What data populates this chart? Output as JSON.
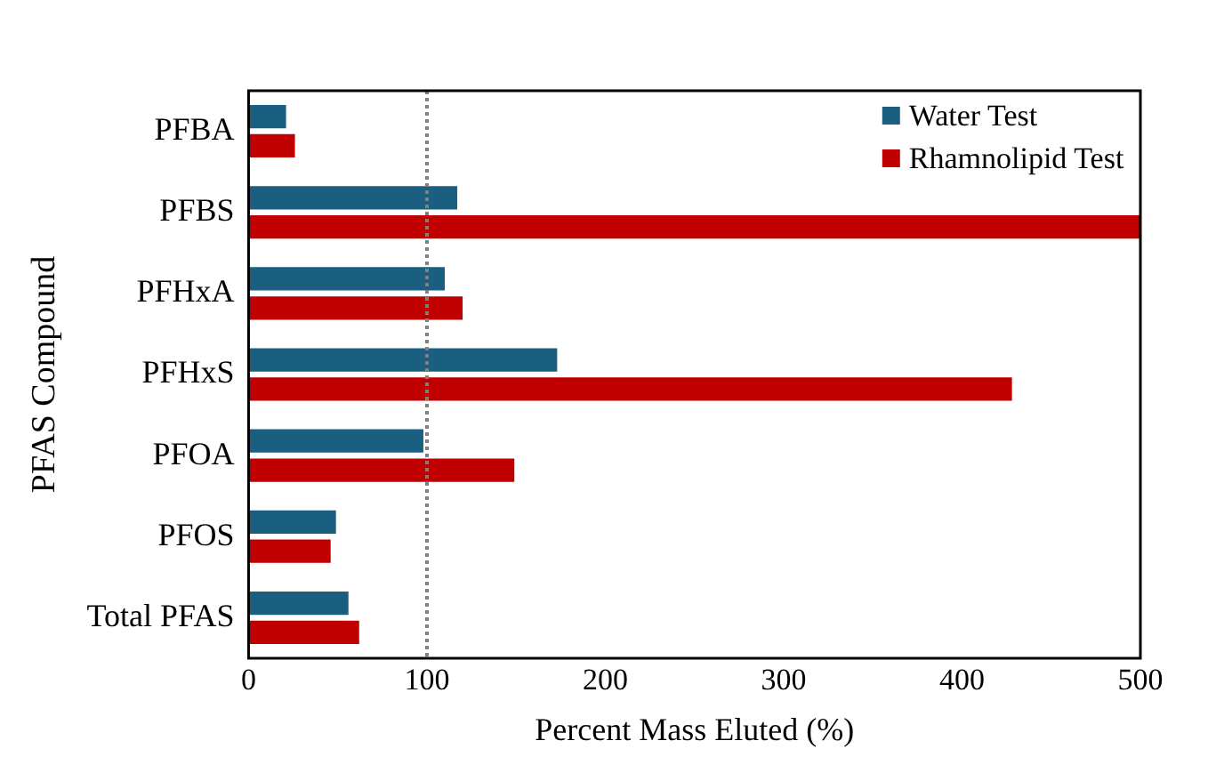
{
  "chart_data": {
    "type": "bar",
    "orientation": "horizontal",
    "xlabel": "Percent Mass Eluted (%)",
    "ylabel": "PFAS Compound",
    "categories": [
      "PFBA",
      "PFBS",
      "PFHxA",
      "PFHxS",
      "PFOA",
      "PFOS",
      "Total PFAS"
    ],
    "series": [
      {
        "name": "Water Test",
        "color": "#1a5f80",
        "values": [
          21,
          117,
          110,
          173,
          98,
          49,
          56
        ]
      },
      {
        "name": "Rhamnolipid Test",
        "color": "#c00000",
        "values": [
          26,
          500,
          120,
          428,
          149,
          46,
          62
        ]
      }
    ],
    "xlim": [
      0,
      500
    ],
    "xticks": [
      0,
      100,
      200,
      300,
      400,
      500
    ],
    "grid": false,
    "legend": "top right",
    "ref_lines": [
      {
        "axis": "x",
        "value": 100,
        "color": "#808080",
        "line_style": "dotted"
      }
    ]
  }
}
